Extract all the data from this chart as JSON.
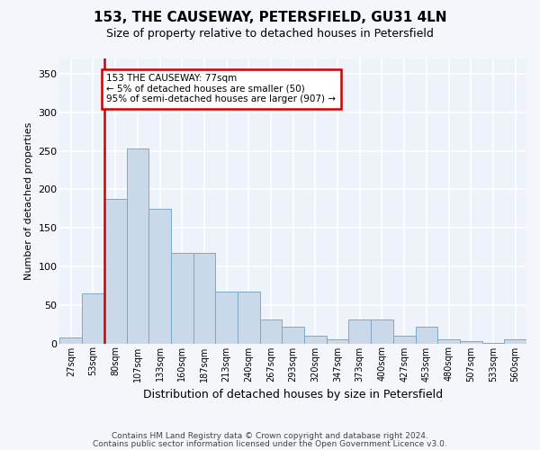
{
  "title": "153, THE CAUSEWAY, PETERSFIELD, GU31 4LN",
  "subtitle": "Size of property relative to detached houses in Petersfield",
  "xlabel": "Distribution of detached houses by size in Petersfield",
  "ylabel": "Number of detached properties",
  "bar_color": "#c9d9ea",
  "bar_edge_color": "#7aaac8",
  "background_color": "#eef2fb",
  "grid_color": "#ffffff",
  "categories": [
    "27sqm",
    "53sqm",
    "80sqm",
    "107sqm",
    "133sqm",
    "160sqm",
    "187sqm",
    "213sqm",
    "240sqm",
    "267sqm",
    "293sqm",
    "320sqm",
    "347sqm",
    "373sqm",
    "400sqm",
    "427sqm",
    "453sqm",
    "480sqm",
    "507sqm",
    "533sqm",
    "560sqm"
  ],
  "values": [
    8,
    65,
    188,
    253,
    175,
    118,
    118,
    67,
    67,
    31,
    22,
    10,
    5,
    31,
    31,
    10,
    22,
    5,
    3,
    1,
    5
  ],
  "red_line_x": 1.5,
  "annotation_text": "153 THE CAUSEWAY: 77sqm\n← 5% of detached houses are smaller (50)\n95% of semi-detached houses are larger (907) →",
  "annotation_box_color": "#ffffff",
  "annotation_border_color": "#cc0000",
  "ylim": [
    0,
    370
  ],
  "yticks": [
    0,
    50,
    100,
    150,
    200,
    250,
    300,
    350
  ],
  "footer_line1": "Contains HM Land Registry data © Crown copyright and database right 2024.",
  "footer_line2": "Contains public sector information licensed under the Open Government Licence v3.0."
}
